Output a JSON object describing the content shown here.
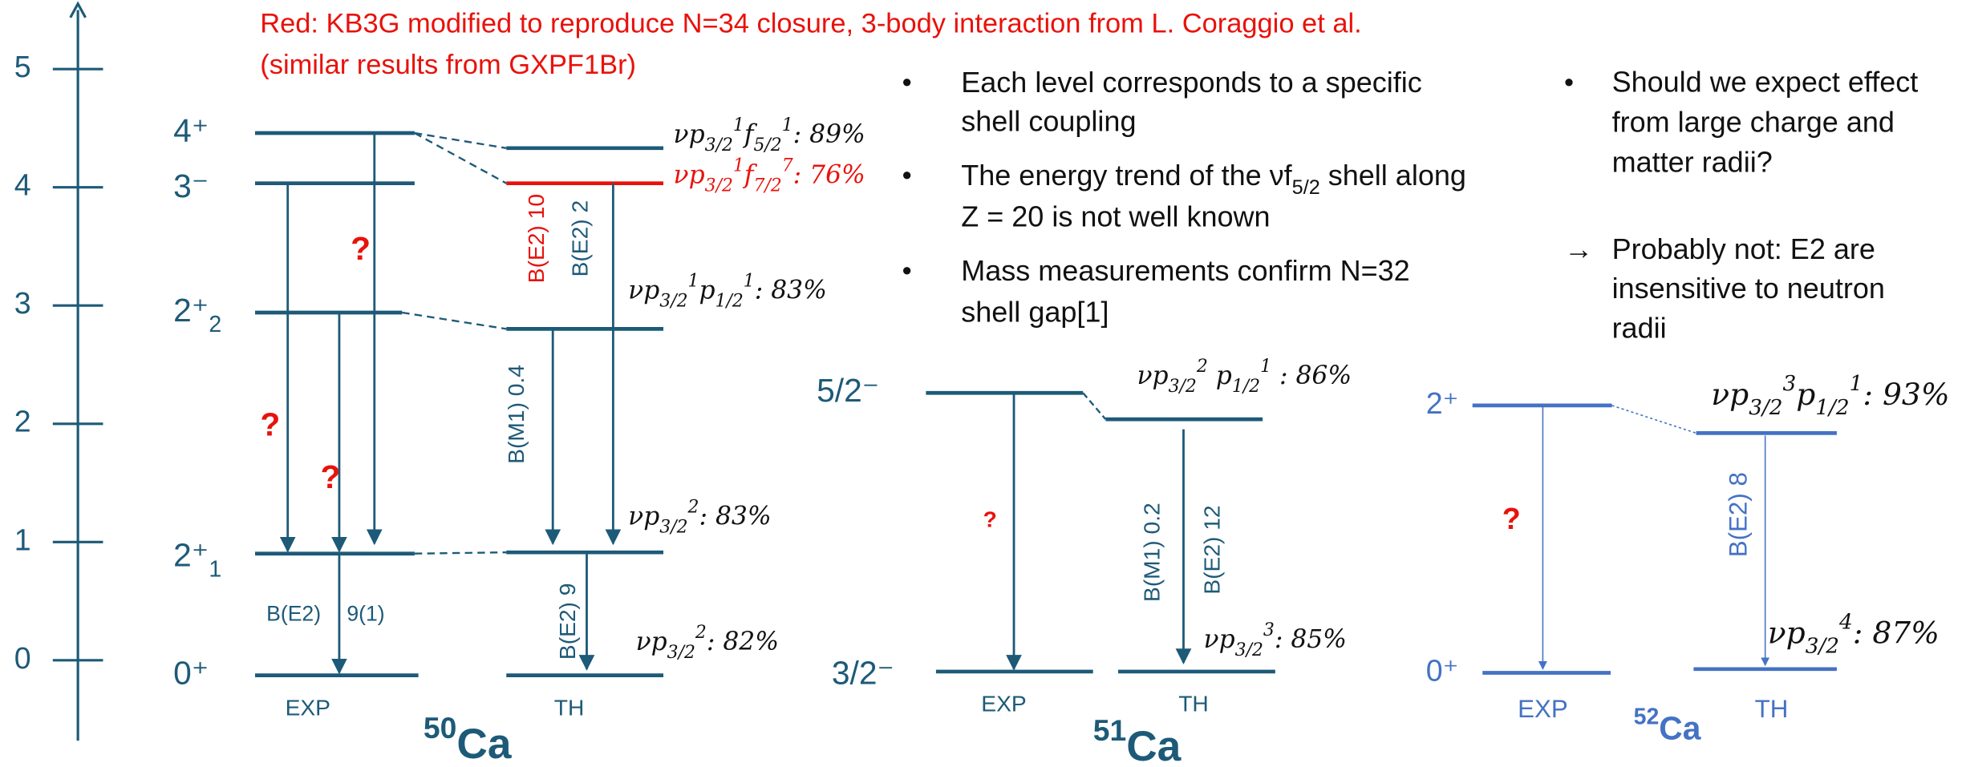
{
  "energy_axis": {
    "ticks": [
      0,
      1,
      2,
      3,
      4,
      5
    ]
  },
  "note": [
    "Red: KB3G modified to reproduce N=34 closure, 3-body interaction from L. Coraggio et al.",
    "(similar results from GXPF1Br)"
  ],
  "bullets": [
    [
      [
        "Each level corresponds to a specific"
      ],
      [
        "shell coupling"
      ]
    ],
    [
      [
        "The energy trend of the ",
        "νf",
        {
          "sub": "5/2"
        },
        " shell along"
      ],
      [
        "Z = 20 is not well known"
      ]
    ],
    [
      [
        "Mass measurements confirm N=32"
      ],
      [
        "shell gap[1]"
      ]
    ]
  ],
  "questions": {
    "bullet": [
      "Should we expect effect",
      "from large charge and",
      "matter radii?"
    ],
    "answer": {
      "arrow": "→",
      "lines": [
        "Probably not: E2 are",
        "insensitive to neutron",
        "radii"
      ]
    }
  },
  "ca50": {
    "nucleus": [
      {
        "sup": "50"
      },
      "Ca"
    ],
    "exp": "EXP",
    "th": "TH",
    "levels": [
      [
        "4⁺"
      ],
      [
        "3⁻"
      ],
      [
        "2⁺",
        {
          "sub": "2"
        }
      ],
      [
        "2⁺",
        {
          "sub": "1"
        }
      ],
      [
        "0⁺"
      ]
    ],
    "configs": [
      [
        "νp",
        {
          "sub": "3/2"
        },
        {
          "sup": "1"
        },
        "f",
        {
          "sub": "5/2"
        },
        {
          "sup": "1"
        },
        ": 89%"
      ],
      [
        "νp",
        {
          "sub": "3/2"
        },
        {
          "sup": "1"
        },
        "f",
        {
          "sub": "7/2"
        },
        {
          "sup": "7"
        },
        ": 76%"
      ],
      [
        "νp",
        {
          "sub": "3/2"
        },
        {
          "sup": "1"
        },
        "p",
        {
          "sub": "1/2"
        },
        {
          "sup": "1"
        },
        ": 83%"
      ],
      [
        "νp",
        {
          "sub": "3/2"
        },
        {
          "sup": "2"
        },
        ": 83%"
      ],
      [
        "νp",
        {
          "sub": "3/2"
        },
        {
          "sup": "2"
        },
        ": 82%"
      ]
    ],
    "exp_transitions": [
      "?",
      "?",
      "?",
      "B(E2)",
      "9(1)"
    ],
    "th_transitions": [
      "B(E2)  10",
      "B(E2)  2",
      "B(M1)  0.4",
      "B(E2)  9"
    ]
  },
  "ca51": {
    "nucleus": [
      {
        "sup": "51"
      },
      "Ca"
    ],
    "exp": "EXP",
    "th": "TH",
    "levels": [
      [
        "5/2⁻"
      ],
      [
        "3/2⁻"
      ]
    ],
    "configs": [
      [
        "νp",
        {
          "sub": "3/2"
        },
        {
          "sup": "2"
        },
        " p",
        {
          "sub": "1/2"
        },
        {
          "sup": "1"
        },
        " : 86%"
      ],
      [
        "νp",
        {
          "sub": "3/2"
        },
        {
          "sup": "3"
        },
        ": 85%"
      ]
    ],
    "exp_transitions": [
      "?"
    ],
    "th_transitions": [
      "B(M1)  0.2",
      "B(E2)  12"
    ]
  },
  "ca52": {
    "nucleus": [
      {
        "sup": "52"
      },
      "Ca"
    ],
    "exp": "EXP",
    "th": "TH",
    "levels": [
      [
        "2⁺"
      ],
      [
        "0⁺"
      ]
    ],
    "configs": [
      [
        "νp",
        {
          "sub": "3/2"
        },
        {
          "sup": "3"
        },
        "p",
        {
          "sub": "1/2"
        },
        {
          "sup": "1"
        },
        ": 93%"
      ],
      [
        "νp",
        {
          "sub": "3/2"
        },
        {
          "sup": "4"
        },
        ": 87%"
      ]
    ],
    "exp_transitions": [
      "?"
    ],
    "th_transitions": [
      "B(E2)  8"
    ]
  }
}
